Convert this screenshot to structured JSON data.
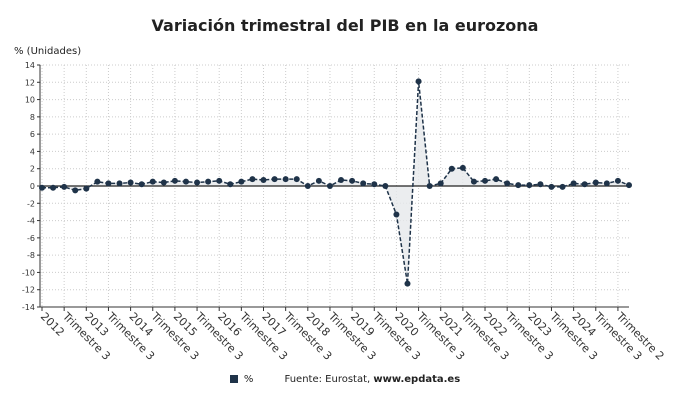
{
  "chart_data": {
    "type": "line",
    "title": "Variación trimestral del PIB en la eurozona",
    "ylabel": "% (Unidades)",
    "xlabel": "",
    "ylim": [
      -14,
      14
    ],
    "yticks": [
      -14,
      -12,
      -10,
      -8,
      -6,
      -4,
      -2,
      0,
      2,
      4,
      6,
      8,
      10,
      12,
      14
    ],
    "grid": true,
    "x_tick_labels": [
      "2012",
      "Trimestre 3",
      "2013",
      "Trimestre 3",
      "2014",
      "Trimestre 3",
      "2015",
      "Trimestre 3",
      "2016",
      "Trimestre 3",
      "2017",
      "Trimestre 3",
      "2018",
      "Trimestre 3",
      "2019",
      "Trimestre 3",
      "2020",
      "Trimestre 3",
      "2021",
      "Trimestre 3",
      "2022",
      "Trimestre 3",
      "2023",
      "Trimestre 3",
      "2024",
      "Trimestre 3",
      "Trimestre 2"
    ],
    "x_start": "2012 T1",
    "x_end": "2025 T2",
    "series": [
      {
        "name": "%",
        "color": "#1f3349",
        "values": [
          -0.2,
          -0.2,
          -0.1,
          -0.5,
          -0.3,
          0.5,
          0.3,
          0.3,
          0.4,
          0.2,
          0.5,
          0.4,
          0.6,
          0.5,
          0.4,
          0.5,
          0.6,
          0.2,
          0.5,
          0.8,
          0.7,
          0.8,
          0.8,
          0.8,
          0.0,
          0.6,
          0.0,
          0.7,
          0.6,
          0.3,
          0.2,
          0.0,
          -3.3,
          -11.3,
          12.1,
          0.0,
          0.3,
          2.0,
          2.1,
          0.5,
          0.6,
          0.8,
          0.3,
          0.1,
          0.1,
          0.2,
          -0.1,
          -0.1,
          0.3,
          0.2,
          0.4,
          0.3,
          0.6,
          0.1
        ]
      }
    ],
    "legend_position": "bottom"
  },
  "legend": {
    "series_label": "%",
    "source_prefix": "Fuente: Eurostat, ",
    "source_site": "www.epdata.es"
  }
}
